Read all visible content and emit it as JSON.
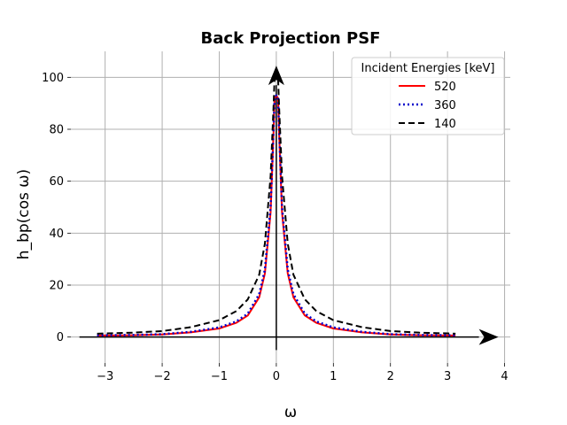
{
  "chart_data": {
    "type": "line",
    "title": "Back Projection PSF",
    "xlabel": "ω",
    "ylabel": "h_bp(cos ω)",
    "xlim": [
      -3.6,
      4.1
    ],
    "ylim": [
      -10,
      110
    ],
    "xticks": [
      -3,
      -2,
      -1,
      0,
      1,
      2,
      3,
      4
    ],
    "yticks": [
      0,
      20,
      40,
      60,
      80,
      100
    ],
    "grid": true,
    "legend": {
      "title": "Incident Energies [keV]",
      "position": "top-right"
    },
    "series": [
      {
        "name": "520",
        "color": "#ff0000",
        "style": "solid",
        "x": [
          -3.14,
          -3.0,
          -2.5,
          -2.0,
          -1.5,
          -1.0,
          -0.7,
          -0.5,
          -0.3,
          -0.2,
          -0.1,
          -0.05,
          -0.03,
          0,
          0.03,
          0.05,
          0.1,
          0.2,
          0.3,
          0.5,
          0.7,
          1.0,
          1.5,
          2.0,
          2.5,
          3.0,
          3.14
        ],
        "y": [
          0.6,
          0.6,
          0.7,
          1.0,
          1.8,
          3.3,
          5.5,
          8.3,
          15.3,
          24.5,
          48,
          78,
          92,
          93,
          92,
          78,
          48,
          24.5,
          15.3,
          8.3,
          5.5,
          3.3,
          1.8,
          1.0,
          0.7,
          0.6,
          0.6
        ]
      },
      {
        "name": "360",
        "color": "#0000cc",
        "style": "dotted",
        "x": [
          -3.14,
          -3.0,
          -2.5,
          -2.0,
          -1.5,
          -1.0,
          -0.7,
          -0.5,
          -0.3,
          -0.2,
          -0.1,
          -0.05,
          -0.03,
          0,
          0.03,
          0.05,
          0.1,
          0.2,
          0.3,
          0.5,
          0.7,
          1.0,
          1.5,
          2.0,
          2.5,
          3.0,
          3.14
        ],
        "y": [
          0.7,
          0.7,
          0.8,
          1.1,
          2.0,
          3.7,
          6.0,
          9.0,
          16.5,
          26,
          50,
          79,
          92.5,
          93,
          92.5,
          79,
          50,
          26,
          16.5,
          9.0,
          6.0,
          3.7,
          2.0,
          1.1,
          0.8,
          0.7,
          0.7
        ]
      },
      {
        "name": "140",
        "color": "#000000",
        "style": "dashed",
        "x": [
          -3.14,
          -3.0,
          -2.5,
          -2.0,
          -1.5,
          -1.0,
          -0.7,
          -0.5,
          -0.3,
          -0.2,
          -0.1,
          -0.05,
          -0.03,
          0,
          0.03,
          0.05,
          0.1,
          0.2,
          0.3,
          0.5,
          0.7,
          1.0,
          1.5,
          2.0,
          2.5,
          3.0,
          3.14
        ],
        "y": [
          1.3,
          1.4,
          1.7,
          2.3,
          3.8,
          6.5,
          10.0,
          14.5,
          24,
          36,
          62,
          88,
          100,
          100,
          100,
          88,
          62,
          36,
          24,
          14.5,
          10.0,
          6.5,
          3.8,
          2.3,
          1.7,
          1.4,
          1.3
        ]
      }
    ]
  }
}
